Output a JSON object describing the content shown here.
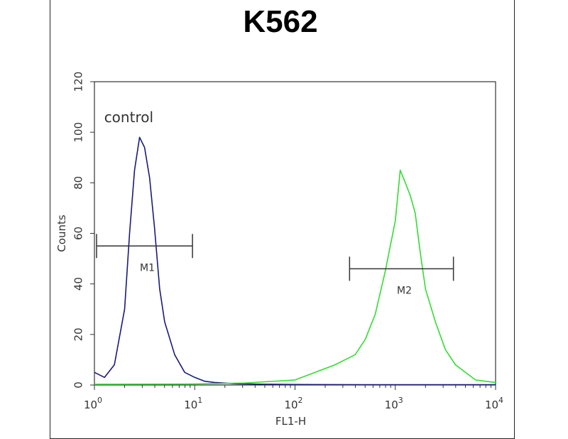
{
  "chart_data": {
    "type": "line",
    "title": "K562",
    "xlabel": "FL1-H",
    "ylabel": "Counts",
    "x_scale": "log",
    "xlim": [
      1,
      10000
    ],
    "ylim": [
      0,
      120
    ],
    "x_ticks": [
      {
        "base": "10",
        "exp": "0"
      },
      {
        "base": "10",
        "exp": "1"
      },
      {
        "base": "10",
        "exp": "2"
      },
      {
        "base": "10",
        "exp": "3"
      },
      {
        "base": "10",
        "exp": "4"
      }
    ],
    "y_ticks": [
      0,
      20,
      40,
      60,
      80,
      100,
      120
    ],
    "grid": false,
    "annotations": [
      {
        "text": "control",
        "x": 1.25,
        "y": 104
      }
    ],
    "markers": [
      {
        "label": "M1",
        "x_start": 1.05,
        "x_end": 9.5,
        "y": 55
      },
      {
        "label": "M2",
        "x_start": 350,
        "x_end": 3800,
        "y": 46
      }
    ],
    "series": [
      {
        "name": "control",
        "color": "#1a1a7a",
        "x": [
          1,
          1.26,
          1.58,
          2,
          2.24,
          2.51,
          2.82,
          3.16,
          3.55,
          3.98,
          4.47,
          5.01,
          6.31,
          7.94,
          10,
          12.6,
          15.8,
          25.1,
          50,
          100,
          1000,
          10000
        ],
        "y": [
          5,
          3,
          8,
          30,
          60,
          85,
          98,
          94,
          82,
          62,
          38,
          25,
          12,
          5,
          3,
          1.5,
          1,
          0.5,
          0.3,
          0.2,
          0.1,
          0.1
        ]
      },
      {
        "name": "",
        "color": "#33dd33",
        "x": [
          1,
          10,
          31.6,
          100,
          158,
          251,
          398,
          501,
          631,
          794,
          1000,
          1120,
          1260,
          1410,
          1580,
          1780,
          2000,
          2510,
          3160,
          3980,
          5010,
          6310,
          10000
        ],
        "y": [
          0.3,
          0.4,
          0.8,
          2,
          5,
          8,
          12,
          18,
          28,
          45,
          65,
          85,
          80,
          75,
          68,
          52,
          38,
          25,
          14,
          8,
          5,
          2,
          1
        ]
      }
    ]
  }
}
